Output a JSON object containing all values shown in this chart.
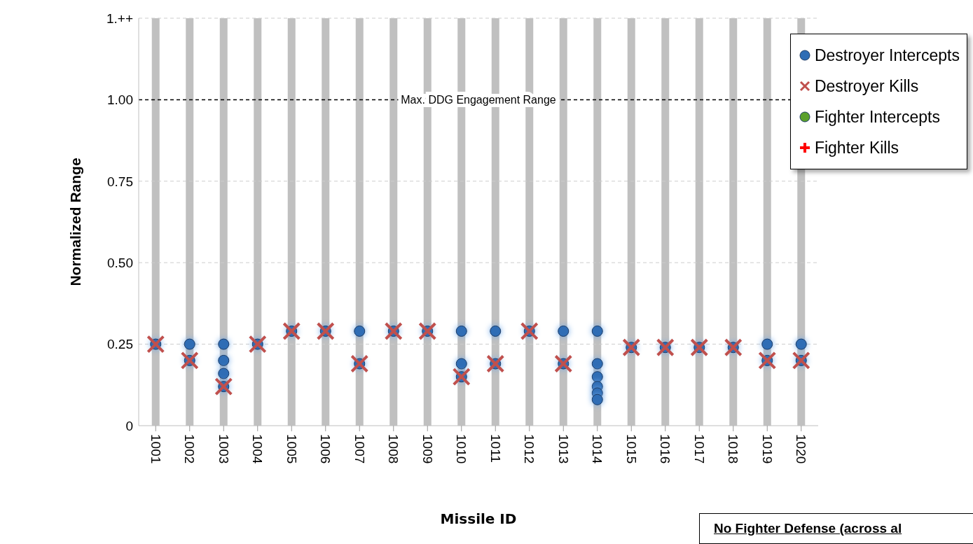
{
  "chart_data": {
    "type": "scatter",
    "xlabel": "Missile ID",
    "ylabel": "Normalized Range",
    "series": [
      {
        "name": "Destroyer Intercepts",
        "color": "#2f6db5",
        "marker": "circle",
        "x": [
          1001,
          1002,
          1002,
          1003,
          1003,
          1003,
          1003,
          1004,
          1005,
          1006,
          1007,
          1007,
          1008,
          1009,
          1010,
          1010,
          1010,
          1011,
          1011,
          1012,
          1013,
          1013,
          1014,
          1014,
          1014,
          1014,
          1014,
          1014,
          1015,
          1016,
          1017,
          1018,
          1019,
          1019,
          1020,
          1020
        ],
        "values": [
          0.25,
          0.25,
          0.2,
          0.25,
          0.2,
          0.16,
          0.12,
          0.25,
          0.29,
          0.29,
          0.29,
          0.19,
          0.29,
          0.29,
          0.29,
          0.19,
          0.15,
          0.29,
          0.19,
          0.29,
          0.29,
          0.19,
          0.29,
          0.19,
          0.15,
          0.12,
          0.1,
          0.08,
          0.24,
          0.24,
          0.24,
          0.24,
          0.25,
          0.2,
          0.25,
          0.2
        ]
      },
      {
        "name": "Destroyer Kills",
        "color": "#c0504d",
        "marker": "cross",
        "x": [
          1001,
          1002,
          1003,
          1004,
          1005,
          1006,
          1007,
          1008,
          1009,
          1010,
          1011,
          1012,
          1013,
          1015,
          1016,
          1017,
          1018,
          1019,
          1020
        ],
        "values": [
          0.25,
          0.2,
          0.12,
          0.25,
          0.29,
          0.29,
          0.19,
          0.29,
          0.29,
          0.15,
          0.19,
          0.29,
          0.19,
          0.24,
          0.24,
          0.24,
          0.24,
          0.2,
          0.2
        ]
      },
      {
        "name": "Fighter Intercepts",
        "color": "#5aa02c",
        "marker": "circle"
      },
      {
        "name": "Fighter Kills",
        "color": "#ff0000",
        "marker": "plus"
      }
    ],
    "xlim": [
      1000.5,
      1020.5
    ],
    "xticks": [
      1001,
      1002,
      1003,
      1004,
      1005,
      1006,
      1007,
      1008,
      1009,
      1010,
      1011,
      1012,
      1013,
      1014,
      1015,
      1016,
      1017,
      1018,
      1019,
      1020
    ],
    "ylim": [
      0,
      1.25
    ],
    "yticks": [
      0,
      0.25,
      {
        "value": 0.5,
        "label": "0.50"
      },
      0.75,
      {
        "value": 1,
        "label": "1.00"
      },
      {
        "value": 1.25,
        "label": "1.++"
      }
    ],
    "ref_lines": [
      {
        "axis": "y",
        "value": 1,
        "label": "Max. DDG Engagement Range",
        "color": "#000000",
        "line_style": "dashed"
      }
    ],
    "annotations": [
      "No Fighter Defense (across al"
    ],
    "grid": true,
    "legend": "top right"
  }
}
